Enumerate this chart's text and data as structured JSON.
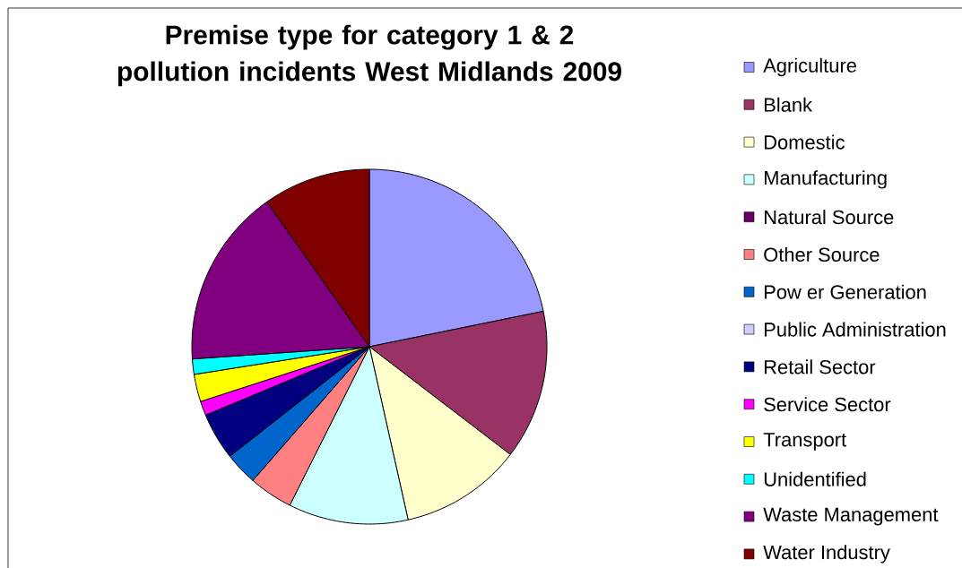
{
  "chart_data": {
    "type": "pie",
    "title": "Premise type for category 1 & 2 pollution incidents West Midlands 2009",
    "categories": [
      "Agriculture",
      "Blank",
      "Domestic",
      "Manufacturing",
      "Natural Source",
      "Other Source",
      "Pow er Generation",
      "Public Administration",
      "Retail Sector",
      "Service Sector",
      "Transport",
      "Unidentified",
      "Waste Management",
      "Water Industry"
    ],
    "values": [
      21.8,
      13.6,
      11.1,
      10.9,
      0,
      4.0,
      3.0,
      0,
      4.3,
      1.3,
      2.5,
      1.4,
      16.3,
      9.8
    ],
    "colors": [
      "#9999ff",
      "#993366",
      "#ffffcc",
      "#ccffff",
      "#660066",
      "#ff8080",
      "#0066cc",
      "#ccccff",
      "#000080",
      "#ff00ff",
      "#ffff00",
      "#00ffff",
      "#800080",
      "#800000"
    ],
    "legend": "right"
  }
}
